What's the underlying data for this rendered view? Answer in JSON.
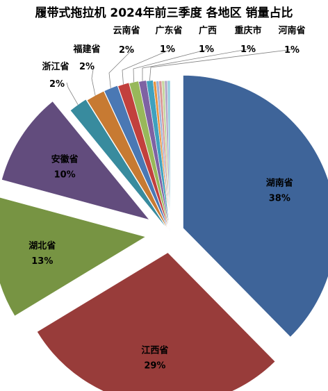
{
  "chart_data": {
    "type": "pie",
    "title": "履带式拖拉机  2024年前三季度  各地区 销量占比",
    "legend": "none",
    "slices": [
      {
        "name": "湖南省",
        "value": 38,
        "label": "38%",
        "color": "#3E6499"
      },
      {
        "name": "江西省",
        "value": 29,
        "label": "29%",
        "color": "#983C3A"
      },
      {
        "name": "湖北省",
        "value": 13,
        "label": "13%",
        "color": "#779443"
      },
      {
        "name": "安徽省",
        "value": 10,
        "label": "10%",
        "color": "#624C7D"
      },
      {
        "name": "浙江省",
        "value": 2,
        "label": "2%",
        "color": "#388B9E"
      },
      {
        "name": "福建省",
        "value": 2,
        "label": "2%",
        "color": "#C77A32"
      },
      {
        "name": "云南省",
        "value": 1.5,
        "label": "2%",
        "color": "#4A78B4"
      },
      {
        "name": "广东省",
        "value": 1.2,
        "label": "1%",
        "color": "#C2403D"
      },
      {
        "name": "广西",
        "value": 1.0,
        "label": "1%",
        "color": "#98B85A"
      },
      {
        "name": "重庆市",
        "value": 0.8,
        "label": "1%",
        "color": "#7E62A3"
      },
      {
        "name": "河南省",
        "value": 0.7,
        "label": "1%",
        "color": "#3FA1BE"
      },
      {
        "name": "",
        "value": 0.3,
        "label": "",
        "color": "#E9933E"
      },
      {
        "name": "",
        "value": 0.3,
        "label": "",
        "color": "#9FB3D6"
      },
      {
        "name": "",
        "value": 0.3,
        "label": "",
        "color": "#D99695"
      },
      {
        "name": "",
        "value": 0.3,
        "label": "",
        "color": "#C5D79F"
      },
      {
        "name": "",
        "value": 0.3,
        "label": "",
        "color": "#B4A7C8"
      },
      {
        "name": "",
        "value": 0.3,
        "label": "",
        "color": "#93CDDD"
      }
    ]
  }
}
